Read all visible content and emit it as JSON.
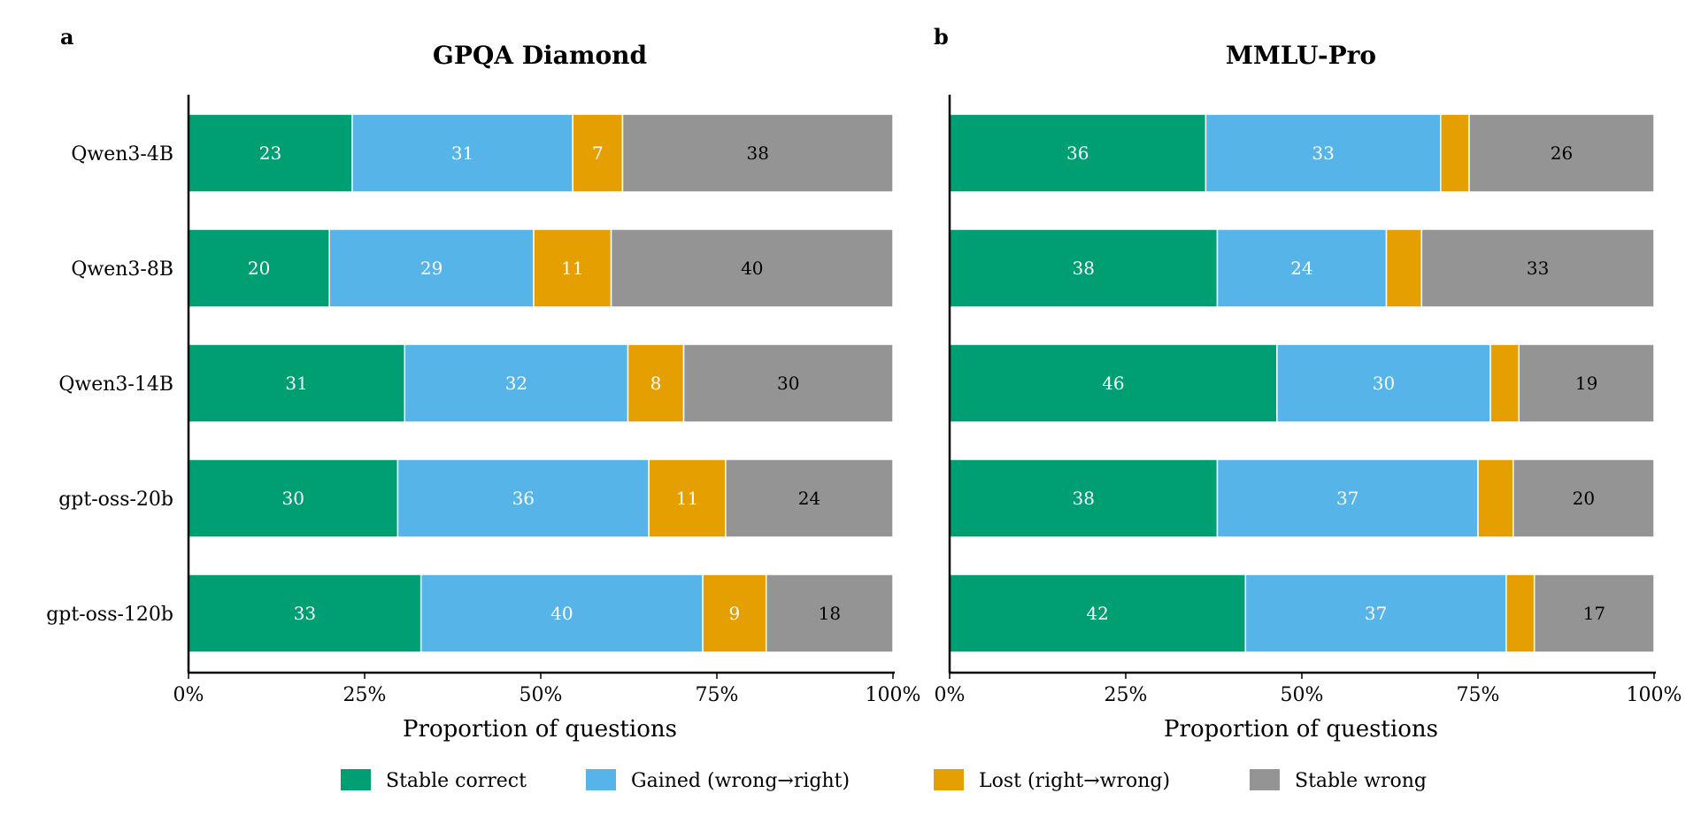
{
  "chart_data": [
    {
      "type": "bar",
      "orientation": "horizontal",
      "stacked": true,
      "panel": "a",
      "title": "GPQA Diamond",
      "xlabel": "Proportion of questions",
      "ylabel": "",
      "xlim": [
        0,
        100
      ],
      "x_ticks": [
        "0%",
        "25%",
        "50%",
        "75%",
        "100%"
      ],
      "categories": [
        "Qwen3-4B",
        "Qwen3-8B",
        "Qwen3-14B",
        "gpt-oss-20b",
        "gpt-oss-120b"
      ],
      "series": [
        {
          "name": "Stable correct",
          "values": [
            23,
            20,
            31,
            30,
            33
          ]
        },
        {
          "name": "Gained (wrong→right)",
          "values": [
            31,
            29,
            32,
            36,
            40
          ]
        },
        {
          "name": "Lost (right→wrong)",
          "values": [
            7,
            11,
            8,
            11,
            9
          ]
        },
        {
          "name": "Stable wrong",
          "values": [
            38,
            40,
            30,
            24,
            18
          ]
        }
      ]
    },
    {
      "type": "bar",
      "orientation": "horizontal",
      "stacked": true,
      "panel": "b",
      "title": "MMLU-Pro",
      "xlabel": "Proportion of questions",
      "ylabel": "",
      "xlim": [
        0,
        100
      ],
      "x_ticks": [
        "0%",
        "25%",
        "50%",
        "75%",
        "100%"
      ],
      "categories": [
        "Qwen3-4B",
        "Qwen3-8B",
        "Qwen3-14B",
        "gpt-oss-20b",
        "gpt-oss-120b"
      ],
      "series": [
        {
          "name": "Stable correct",
          "values": [
            36,
            38,
            46,
            38,
            42
          ]
        },
        {
          "name": "Gained (wrong→right)",
          "values": [
            33,
            24,
            30,
            37,
            37
          ]
        },
        {
          "name": "Lost (right→wrong)",
          "values": [
            4,
            5,
            4,
            5,
            4
          ]
        },
        {
          "name": "Stable wrong",
          "values": [
            26,
            33,
            19,
            20,
            17
          ]
        }
      ],
      "hidden_labels_series": [
        "Lost (right→wrong)"
      ]
    }
  ],
  "legend": {
    "position": "bottom",
    "items": [
      "Stable correct",
      "Gained (wrong→right)",
      "Lost (right→wrong)",
      "Stable wrong"
    ]
  },
  "colors": {
    "Stable correct": "#009e73",
    "Gained (wrong→right)": "#56b4e9",
    "Lost (right→wrong)": "#e69f00",
    "Stable wrong": "#949494"
  },
  "label_colors": {
    "Stable correct": "#ffffff",
    "Gained (wrong→right)": "#ffffff",
    "Lost (right→wrong)": "#ffffff",
    "Stable wrong": "#000000"
  }
}
